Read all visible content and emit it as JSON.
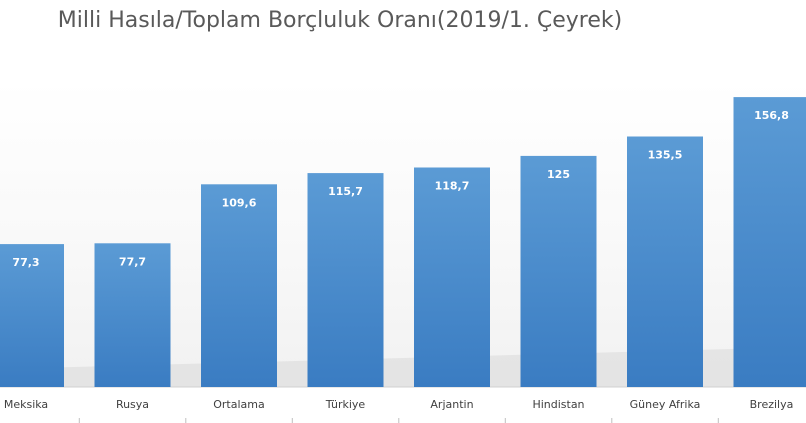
{
  "chart_data": {
    "type": "bar",
    "title": "Milli Hasıla/Toplam Borçluluk Oranı(2019/1. Çeyrek)",
    "categories": [
      "Meksika",
      "Rusya",
      "Ortalama",
      "Türkiye",
      "Arjantin",
      "Hindistan",
      "Güney Afrika",
      "Brezilya"
    ],
    "values": [
      77.3,
      77.7,
      109.6,
      115.7,
      118.7,
      125,
      135.5,
      156.8
    ],
    "value_labels": [
      "77,3",
      "77,7",
      "109,6",
      "115,7",
      "118,7",
      "125",
      "135,5",
      "156,8"
    ],
    "xlabel": "",
    "ylabel": "",
    "ylim": [
      0,
      160
    ],
    "grid": false,
    "legend": "none",
    "colors": {
      "bar_top": "#5b9bd5",
      "bar_bottom": "#3a7cc2",
      "label_text": "#ffffff",
      "axis_text": "#404040",
      "title_text": "#595959"
    }
  }
}
